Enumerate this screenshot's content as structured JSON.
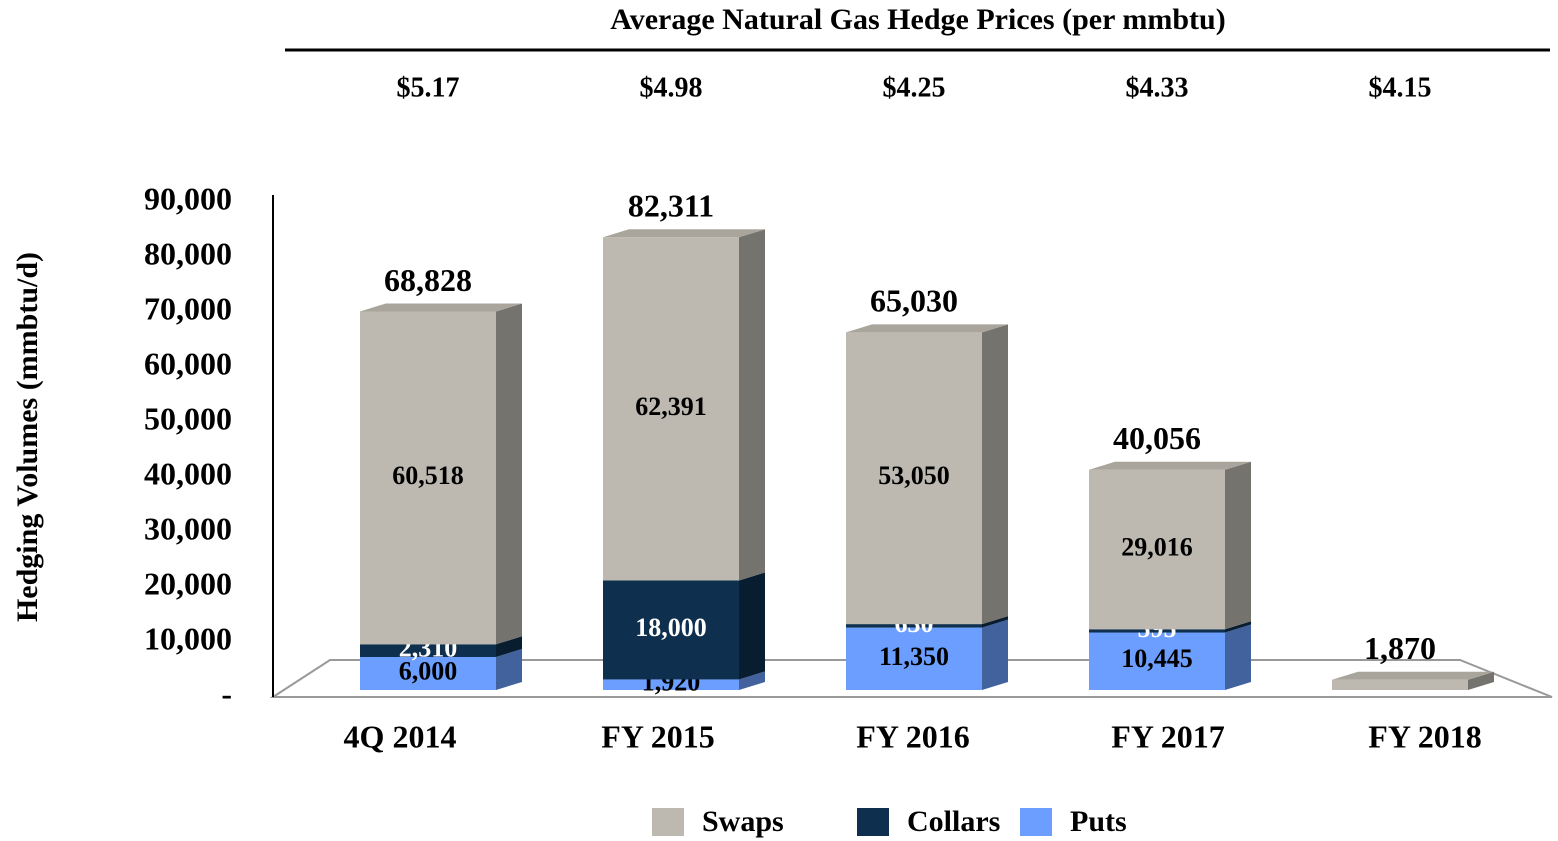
{
  "chart_data": {
    "type": "bar",
    "header_title": "Average Natural Gas Hedge Prices (per mmbtu)",
    "price_labels": [
      "$5.17",
      "$4.98",
      "$4.25",
      "$4.33",
      "$4.15"
    ],
    "y_label": "Hedging Volumes (mmbtu/d)",
    "categories": [
      "4Q 2014",
      "FY 2015",
      "FY 2016",
      "FY 2017",
      "FY 2018"
    ],
    "series": [
      {
        "name": "Swaps",
        "color": "#bdb9b0",
        "values": [
          60518,
          62391,
          53050,
          29016,
          1870
        ],
        "value_labels": [
          "60,518",
          "62,391",
          "53,050",
          "29,016",
          null
        ]
      },
      {
        "name": "Collars",
        "color": "#0e2f4d",
        "values": [
          2310,
          18000,
          630,
          595,
          null
        ],
        "value_labels": [
          "2,310",
          "18,000",
          "630",
          "595",
          null
        ]
      },
      {
        "name": "Puts",
        "color": "#6b9eff",
        "values": [
          6000,
          1920,
          11350,
          10445,
          null
        ],
        "value_labels": [
          "6,000",
          "1,920",
          "11,350",
          "10,445",
          null
        ]
      }
    ],
    "totals": [
      68828,
      82311,
      65030,
      40056,
      1870
    ],
    "total_labels": [
      "68,828",
      "82,311",
      "65,030",
      "40,056",
      "1,870"
    ],
    "ylim": [
      0,
      90000
    ],
    "yticks": [
      {
        "value": 0,
        "label": "-"
      },
      {
        "value": 10000,
        "label": "10,000"
      },
      {
        "value": 20000,
        "label": "20,000"
      },
      {
        "value": 30000,
        "label": "30,000"
      },
      {
        "value": 40000,
        "label": "40,000"
      },
      {
        "value": 50000,
        "label": "50,000"
      },
      {
        "value": 60000,
        "label": "60,000"
      },
      {
        "value": 70000,
        "label": "70,000"
      },
      {
        "value": 80000,
        "label": "80,000"
      },
      {
        "value": 90000,
        "label": "90,000"
      }
    ],
    "legend": "bottom"
  }
}
